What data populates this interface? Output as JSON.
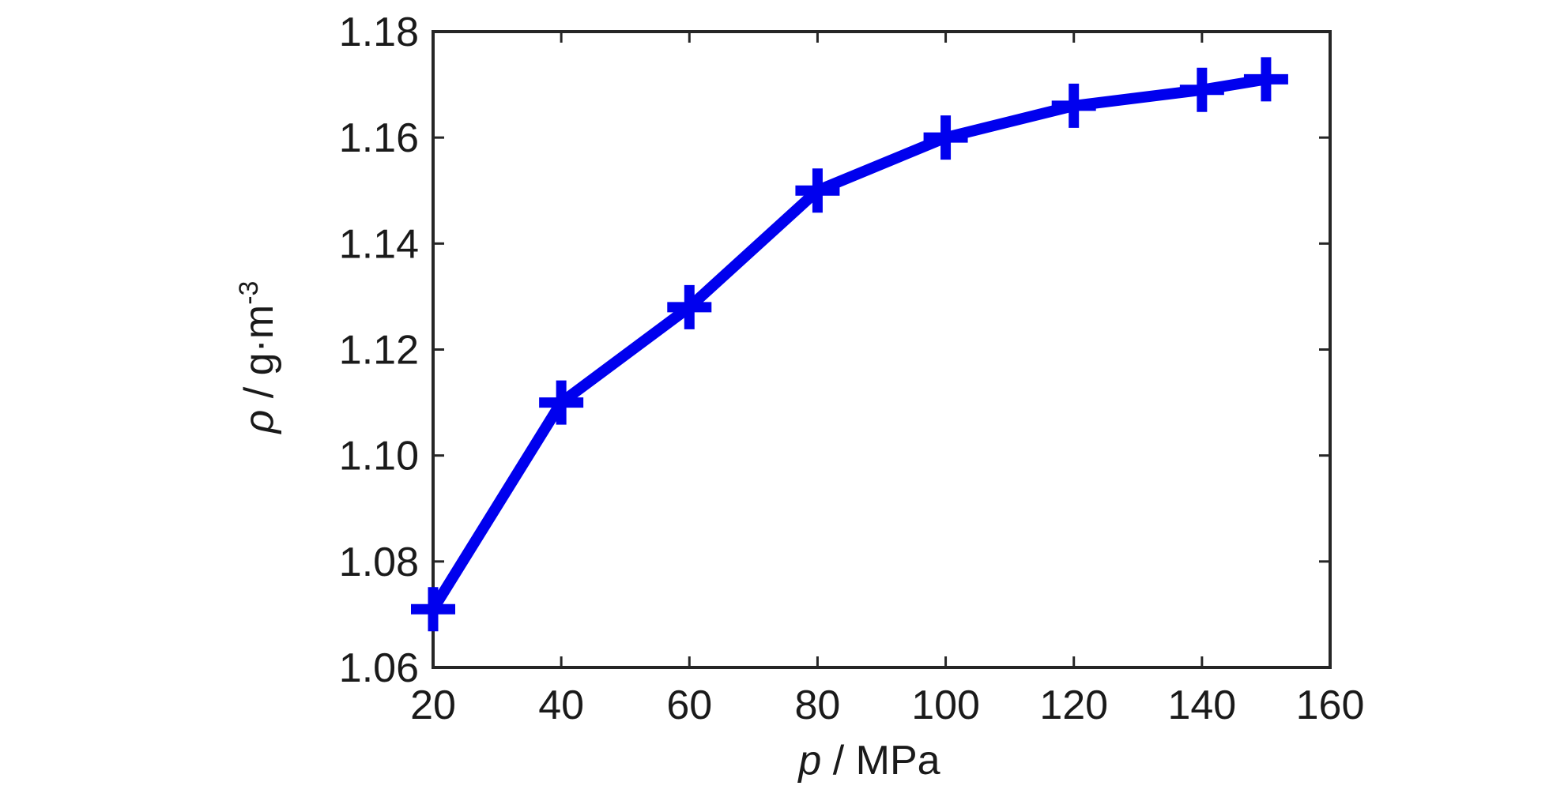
{
  "chart_data": {
    "type": "line",
    "title": "",
    "xlabel": {
      "symbol": "p",
      "unit": " / MPa"
    },
    "ylabel": {
      "symbol": "ρ",
      "unit": " / g·m",
      "exponent": "-3"
    },
    "xlim": [
      20,
      160
    ],
    "ylim": [
      1.06,
      1.18
    ],
    "x_ticks": [
      20,
      40,
      60,
      80,
      100,
      120,
      140,
      160
    ],
    "x_tick_labels": [
      "20",
      "40",
      "60",
      "80",
      "100",
      "120",
      "140",
      "160"
    ],
    "y_ticks": [
      1.06,
      1.08,
      1.1,
      1.12,
      1.14,
      1.16,
      1.18
    ],
    "y_tick_labels": [
      "1.06",
      "1.08",
      "1.10",
      "1.12",
      "1.14",
      "1.16",
      "1.18"
    ],
    "grid": false,
    "legend": "none",
    "series": [
      {
        "color": "#0000ee",
        "marker": "plus",
        "x": [
          20,
          40,
          60,
          80,
          100,
          120,
          140,
          150
        ],
        "y": [
          1.071,
          1.11,
          1.128,
          1.15,
          1.16,
          1.166,
          1.169,
          1.171
        ]
      }
    ]
  }
}
